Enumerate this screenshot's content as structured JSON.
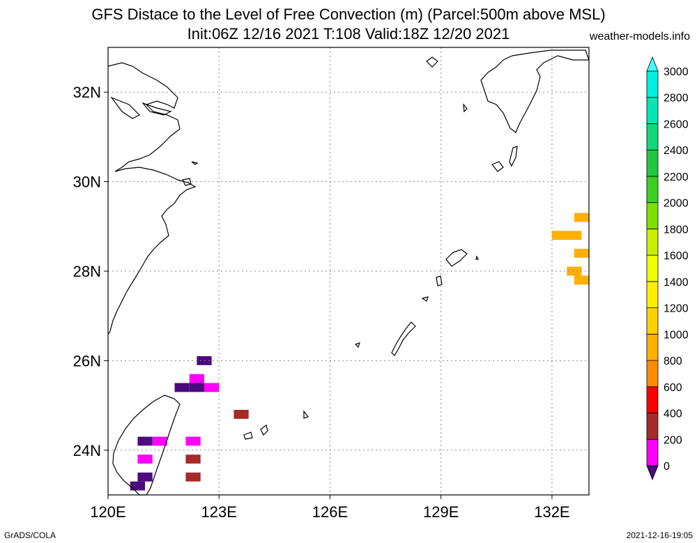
{
  "title_line1": "GFS Distace to the Level of Free Convection (m) (Parcel:500m above MSL)",
  "title_line2": "Init:06Z 12/16 2021 T:108 Valid:18Z 12/20 2021",
  "site": "weather-models.info",
  "footer_left": "GrADS/COLA",
  "footer_right": "2021-12-16-19:05",
  "map": {
    "lon_range": [
      120,
      133
    ],
    "lat_range": [
      23,
      33
    ],
    "lon_ticks": [
      {
        "value": 120,
        "label": "120E"
      },
      {
        "value": 123,
        "label": "123E"
      },
      {
        "value": 126,
        "label": "126E"
      },
      {
        "value": 129,
        "label": "129E"
      },
      {
        "value": 132,
        "label": "132E"
      }
    ],
    "lat_ticks": [
      {
        "value": 24,
        "label": "24N"
      },
      {
        "value": 26,
        "label": "26N"
      },
      {
        "value": 28,
        "label": "28N"
      },
      {
        "value": 30,
        "label": "30N"
      },
      {
        "value": 32,
        "label": "32N"
      }
    ],
    "grid": true
  },
  "colorbar": {
    "labels": [
      "0",
      "200",
      "400",
      "600",
      "800",
      "1000",
      "1200",
      "1400",
      "1600",
      "1800",
      "2000",
      "2200",
      "2400",
      "2600",
      "2800",
      "3000"
    ],
    "colors": [
      "#4b0a7d",
      "#ff00ff",
      "#a52a2a",
      "#ff0000",
      "#ff8c00",
      "#ffb000",
      "#ffd000",
      "#ffee00",
      "#eeff00",
      "#c8ee00",
      "#7ce000",
      "#3cd020",
      "#22c840",
      "#10d878",
      "#00e8b0",
      "#00f0e0",
      "#40ffff"
    ]
  },
  "cells": [
    {
      "lon": 122.6,
      "lat": 26.0,
      "color": "#4b0a7d"
    },
    {
      "lon": 122.4,
      "lat": 25.6,
      "color": "#ff00ff"
    },
    {
      "lon": 122.0,
      "lat": 25.4,
      "color": "#4b0a7d"
    },
    {
      "lon": 122.4,
      "lat": 25.4,
      "color": "#4b0a7d"
    },
    {
      "lon": 122.8,
      "lat": 25.4,
      "color": "#ff00ff"
    },
    {
      "lon": 123.6,
      "lat": 24.8,
      "color": "#a52a2a"
    },
    {
      "lon": 121.0,
      "lat": 24.2,
      "color": "#4b0a7d"
    },
    {
      "lon": 121.4,
      "lat": 24.2,
      "color": "#ff00ff"
    },
    {
      "lon": 121.0,
      "lat": 23.8,
      "color": "#ff00ff"
    },
    {
      "lon": 121.0,
      "lat": 23.4,
      "color": "#4b0a7d"
    },
    {
      "lon": 120.8,
      "lat": 23.2,
      "color": "#4b0a7d"
    },
    {
      "lon": 122.3,
      "lat": 24.2,
      "color": "#ff00ff"
    },
    {
      "lon": 122.3,
      "lat": 23.8,
      "color": "#a52a2a"
    },
    {
      "lon": 122.3,
      "lat": 23.4,
      "color": "#a52a2a"
    },
    {
      "lon": 132.2,
      "lat": 28.8,
      "color": "#ffb000"
    },
    {
      "lon": 132.6,
      "lat": 28.8,
      "color": "#ffb000"
    },
    {
      "lon": 132.8,
      "lat": 29.2,
      "color": "#ffb000"
    },
    {
      "lon": 132.8,
      "lat": 28.4,
      "color": "#ffb000"
    },
    {
      "lon": 132.6,
      "lat": 28.0,
      "color": "#ffb000"
    },
    {
      "lon": 132.8,
      "lat": 27.8,
      "color": "#ffb000"
    }
  ]
}
